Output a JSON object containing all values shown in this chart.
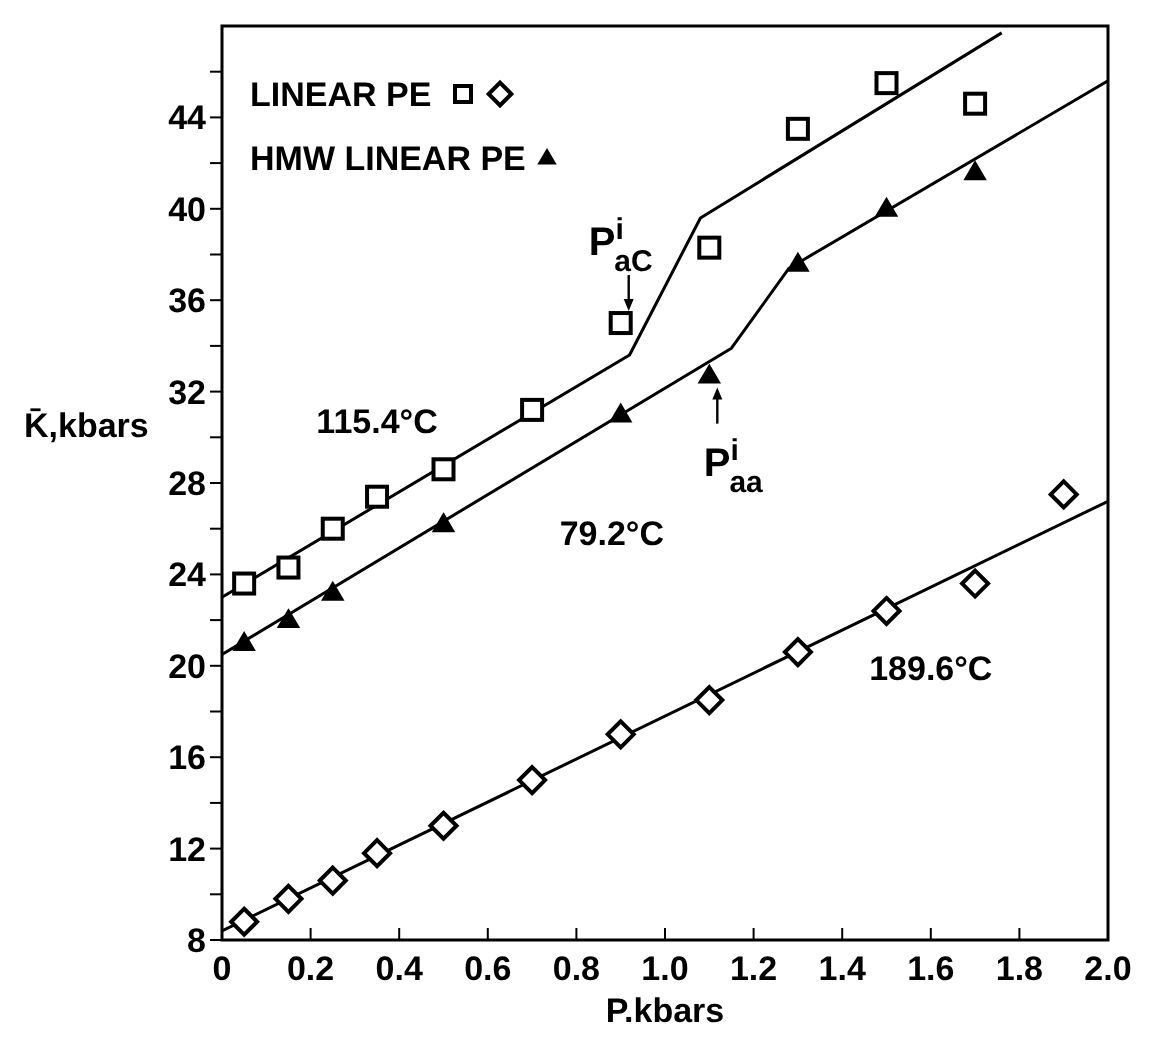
{
  "chart_data": {
    "type": "scatter",
    "xlabel": "P.kbars",
    "ylabel": "K̄,kbars",
    "xlim": [
      0,
      2
    ],
    "ylim": [
      8,
      48
    ],
    "xticks": [
      0,
      0.2,
      0.4,
      0.6,
      0.8,
      {
        "value": 1,
        "label": "1.0"
      },
      1.2,
      1.4,
      1.6,
      1.8,
      {
        "value": 2,
        "label": "2.0"
      }
    ],
    "yticks": [
      8,
      {
        "value": 10,
        "label": null
      },
      12,
      {
        "value": 14,
        "label": null
      },
      16,
      {
        "value": 18,
        "label": null
      },
      20,
      {
        "value": 22,
        "label": null
      },
      24,
      {
        "value": 26,
        "label": null
      },
      28,
      {
        "value": 30,
        "label": null
      },
      32,
      {
        "value": 34,
        "label": null
      },
      36,
      {
        "value": 38,
        "label": null
      },
      40,
      {
        "value": 42,
        "label": null
      },
      44,
      {
        "value": 46,
        "label": null
      }
    ],
    "legend": "top left",
    "series": [
      {
        "name": "LINEAR PE",
        "marker": "square",
        "color": "#000000",
        "x": [
          0.05,
          0.15,
          0.25,
          0.35,
          0.5,
          0.7,
          0.9,
          1.1,
          1.3,
          1.5,
          1.7
        ],
        "values": [
          23.6,
          24.3,
          26,
          27.4,
          28.6,
          31.2,
          35,
          38.3,
          43.5,
          45.5,
          44.6
        ]
      },
      {
        "marker": "diamond",
        "color": "#000000",
        "x": [
          0.05,
          0.15,
          0.25,
          0.35,
          0.5,
          0.7,
          0.9,
          1.1,
          1.3,
          1.5,
          1.7,
          1.9
        ],
        "values": [
          8.8,
          9.8,
          10.6,
          11.8,
          13,
          15,
          17,
          18.5,
          20.6,
          22.4,
          23.6,
          27.5
        ]
      },
      {
        "name": "HMW LINEAR PE",
        "marker": "triangle",
        "color": "#000000",
        "x": [
          0.05,
          0.15,
          0.25,
          0.5,
          0.9,
          1.1,
          1.3,
          1.5,
          1.7
        ],
        "values": [
          21,
          22,
          23.2,
          26.2,
          31,
          32.7,
          37.6,
          40,
          41.6
        ]
      },
      {
        "type": "line",
        "marker": "none",
        "color": "#000000",
        "x": [
          0,
          0.92,
          1.08,
          1.76
        ],
        "values": [
          23,
          33.6,
          39.6,
          47.7
        ]
      },
      {
        "type": "line",
        "marker": "none",
        "color": "#000000",
        "x": [
          0,
          1.15,
          1.28,
          2
        ],
        "values": [
          20.5,
          33.9,
          37.4,
          45.6
        ]
      },
      {
        "type": "line",
        "marker": "none",
        "color": "#000000",
        "x": [
          0,
          2
        ],
        "values": [
          8.4,
          27.2
        ]
      }
    ],
    "annotations": [
      "115.4°C",
      "79.2°C",
      "189.6°C",
      {
        "text": "P$^{i}$$_{aC}$",
        "x": 0.9,
        "y": 35
      },
      {
        "text": "P$^{i}$$_{aa}$",
        "x": 1.1,
        "y": 32.7
      }
    ]
  }
}
